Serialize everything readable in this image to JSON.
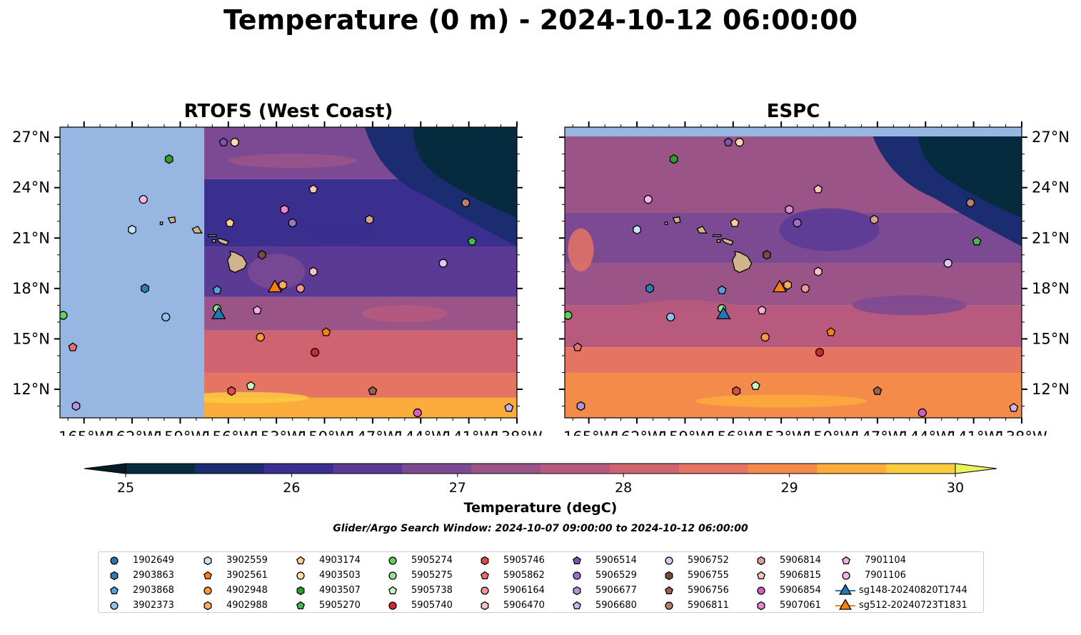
{
  "title": "Temperature (0 m) - 2024-10-12 06:00:00",
  "panels": [
    {
      "title": "RTOFS (West Coast)",
      "lon_ticks": [
        "165°W",
        "162°W",
        "159°W",
        "156°W",
        "153°W",
        "150°W",
        "147°W",
        "144°W",
        "141°W",
        "138°W"
      ],
      "lat_ticks": [
        "27°N",
        "24°N",
        "21°N",
        "18°N",
        "15°N",
        "12°N"
      ]
    },
    {
      "title": "ESPC",
      "lon_ticks": [
        "165°W",
        "162°W",
        "159°W",
        "156°W",
        "153°W",
        "150°W",
        "147°W",
        "144°W",
        "141°W",
        "138°W"
      ],
      "lat_ticks": [
        "27°N",
        "24°N",
        "21°N",
        "18°N",
        "15°N",
        "12°N"
      ]
    }
  ],
  "colorbar": {
    "label": "Temperature (degC)",
    "ticks": [
      "25",
      "26",
      "27",
      "28",
      "29",
      "30"
    ],
    "colors": [
      "#062b3f",
      "#1c2c70",
      "#3a2e8e",
      "#5b3a96",
      "#7b4a92",
      "#9b5488",
      "#b75a7e",
      "#cf6470",
      "#e57463",
      "#f58b4b",
      "#fbac3b",
      "#fbcb3f"
    ],
    "under_color": "#041b28",
    "over_color": "#e9f55a"
  },
  "search_window": "Glider/Argo Search Window: 2024-10-07 09:00:00 to 2024-10-12 06:00:00",
  "chart_data": {
    "type": "heatmap",
    "variable": "Temperature (0 m)",
    "units": "degC",
    "time": "2024-10-12 06:00:00",
    "xlim": [
      -166.5,
      -138
    ],
    "ylim": [
      10.3,
      27.6
    ],
    "clim": [
      25,
      30
    ],
    "platforms": [
      {
        "id": "1902649",
        "marker": "circle",
        "color": "#1f77b4",
        "lon": -152.8,
        "lat": 18.1
      },
      {
        "id": "2903863",
        "marker": "hexagon",
        "color": "#2e7cb8",
        "lon": -161.2,
        "lat": 18.0
      },
      {
        "id": "2903868",
        "marker": "pentagon",
        "color": "#5aa0d8",
        "lon": -156.7,
        "lat": 17.9
      },
      {
        "id": "3902373",
        "marker": "circle",
        "color": "#8ac4ea",
        "lon": -159.9,
        "lat": 16.3
      },
      {
        "id": "3902559",
        "marker": "hexagon",
        "color": "#c6e6f5",
        "lon": -162.0,
        "lat": 21.5
      },
      {
        "id": "3902561",
        "marker": "pentagon",
        "color": "#ff7f0e",
        "lon": -149.9,
        "lat": 15.4
      },
      {
        "id": "4902948",
        "marker": "circle",
        "color": "#ff9a3c",
        "lon": -154.0,
        "lat": 15.1
      },
      {
        "id": "4902988",
        "marker": "hexagon",
        "color": "#ffac5e",
        "lon": -152.6,
        "lat": 18.2
      },
      {
        "id": "4903174",
        "marker": "pentagon",
        "color": "#ffcf94",
        "lon": -155.9,
        "lat": 21.9
      },
      {
        "id": "4903503",
        "marker": "circle",
        "color": "#ffd9b0",
        "lon": -155.6,
        "lat": 26.7
      },
      {
        "id": "4903507",
        "marker": "hexagon",
        "color": "#2ca02c",
        "lon": -159.7,
        "lat": 25.7
      },
      {
        "id": "5905270",
        "marker": "pentagon",
        "color": "#46b946",
        "lon": -140.8,
        "lat": 20.8
      },
      {
        "id": "5905274",
        "marker": "circle",
        "color": "#5fcf5f",
        "lon": -166.3,
        "lat": 16.4
      },
      {
        "id": "5905275",
        "marker": "circle",
        "color": "#90e290",
        "lon": -156.7,
        "lat": 16.8
      },
      {
        "id": "5905738",
        "marker": "pentagon",
        "color": "#c8f7c0",
        "lon": -154.6,
        "lat": 12.2
      },
      {
        "id": "5905740",
        "marker": "circle",
        "color": "#d62728",
        "lon": -150.6,
        "lat": 14.2
      },
      {
        "id": "5905746",
        "marker": "hexagon",
        "color": "#e24a4a",
        "lon": -155.8,
        "lat": 11.9
      },
      {
        "id": "5905862",
        "marker": "pentagon",
        "color": "#e86f6f",
        "lon": -165.7,
        "lat": 14.5
      },
      {
        "id": "5906164",
        "marker": "circle",
        "color": "#f29696",
        "lon": -151.5,
        "lat": 18.0
      },
      {
        "id": "5906470",
        "marker": "hexagon",
        "color": "#fac3c3",
        "lon": -150.7,
        "lat": 19.0
      },
      {
        "id": "5906514",
        "marker": "pentagon",
        "color": "#7d55b0",
        "lon": -156.3,
        "lat": 26.7
      },
      {
        "id": "5906529",
        "marker": "circle",
        "color": "#9c72c9",
        "lon": -152.0,
        "lat": 21.9
      },
      {
        "id": "5906677",
        "marker": "hexagon",
        "color": "#b692db",
        "lon": -165.5,
        "lat": 11.0
      },
      {
        "id": "5906680",
        "marker": "pentagon",
        "color": "#cbb3ee",
        "lon": -138.5,
        "lat": 10.9
      },
      {
        "id": "5906752",
        "marker": "circle",
        "color": "#ddc7f5",
        "lon": -142.6,
        "lat": 19.5
      },
      {
        "id": "5906755",
        "marker": "hexagon",
        "color": "#7a4a3c",
        "lon": -153.9,
        "lat": 20.0
      },
      {
        "id": "5906756",
        "marker": "pentagon",
        "color": "#966152",
        "lon": -147.0,
        "lat": 11.9
      },
      {
        "id": "5906811",
        "marker": "circle",
        "color": "#b77f6f",
        "lon": -141.2,
        "lat": 23.1
      },
      {
        "id": "5906814",
        "marker": "hexagon",
        "color": "#d9a08f",
        "lon": -147.2,
        "lat": 22.1
      },
      {
        "id": "5906815",
        "marker": "pentagon",
        "color": "#f5c7b6",
        "lon": -150.7,
        "lat": 23.9
      },
      {
        "id": "5906854",
        "marker": "circle",
        "color": "#d65fbe",
        "lon": -144.2,
        "lat": 10.6
      },
      {
        "id": "5907061",
        "marker": "hexagon",
        "color": "#e488d0",
        "lon": -152.5,
        "lat": 22.7
      },
      {
        "id": "7901104",
        "marker": "pentagon",
        "color": "#f3aee3",
        "lon": -154.2,
        "lat": 16.7
      },
      {
        "id": "7901106",
        "marker": "circle",
        "color": "#f7b6e6",
        "lon": -161.3,
        "lat": 23.3
      },
      {
        "id": "sg148-20240820T1744",
        "marker": "triangle",
        "color": "#1f77b4",
        "lon": -156.6,
        "lat": 16.5
      },
      {
        "id": "sg512-20240723T1831",
        "marker": "triangle",
        "color": "#ff7f0e",
        "lon": -153.1,
        "lat": 18.1
      }
    ]
  }
}
